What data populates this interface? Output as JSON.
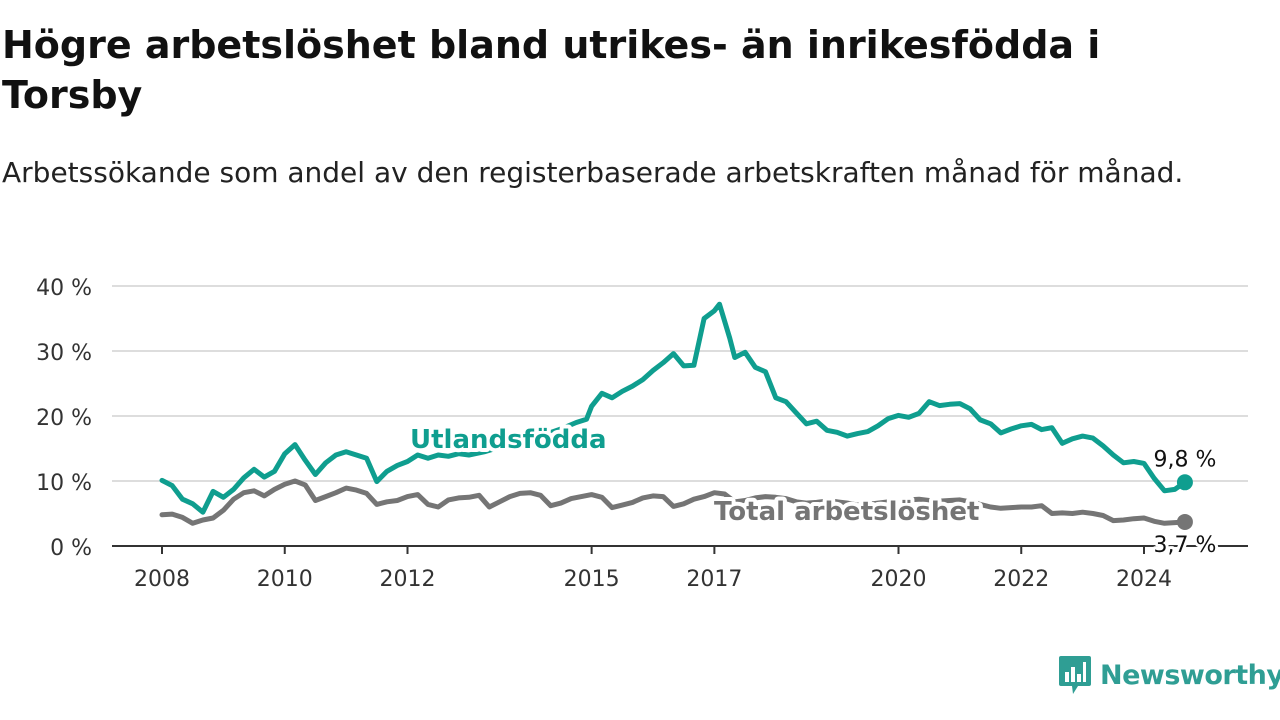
{
  "title": "Högre arbetslöshet bland utrikes- än inrikesfödda i Torsby",
  "subtitle": "Arbetssökande som andel av den registerbaserade arbetskraften månad för månad.",
  "brand": {
    "name": "Newsworthy",
    "icon": "newsworthy-logo-icon",
    "color": "#2f9e94"
  },
  "colors": {
    "utlandsfodda": "#0f9e8f",
    "total": "#757575",
    "grid": "#dddddd",
    "axis": "#333333"
  },
  "chart_data": {
    "type": "line",
    "x_axis": {
      "range": [
        "2008-01",
        "2025-01"
      ],
      "tick_labels": [
        {
          "x": "2008-01",
          "label": "2008"
        },
        {
          "x": "2010-01",
          "label": "2010"
        },
        {
          "x": "2012-01",
          "label": "2012"
        },
        {
          "x": "2015-01",
          "label": "2015"
        },
        {
          "x": "2017-01",
          "label": "2017"
        },
        {
          "x": "2020-01",
          "label": "2020"
        },
        {
          "x": "2022-01",
          "label": "2022"
        },
        {
          "x": "2024-01",
          "label": "2024"
        }
      ]
    },
    "y_axis": {
      "range": [
        0,
        40
      ],
      "ticks": [
        {
          "value": 0,
          "label": "0 %"
        },
        {
          "value": 10,
          "label": "10 %"
        },
        {
          "value": 20,
          "label": "20 %"
        },
        {
          "value": 30,
          "label": "30 %"
        },
        {
          "value": 40,
          "label": "40 %"
        }
      ]
    },
    "grid": true,
    "series": [
      {
        "name": "Utlandsfödda",
        "color": "#0f9e8f",
        "end_label": "9,8 %",
        "end_value": 9.8,
        "points": [
          [
            "2008-01",
            10.1
          ],
          [
            "2008-03",
            9.3
          ],
          [
            "2008-05",
            7.2
          ],
          [
            "2008-07",
            6.5
          ],
          [
            "2008-09",
            5.2
          ],
          [
            "2008-11",
            8.4
          ],
          [
            "2009-01",
            7.5
          ],
          [
            "2009-03",
            8.7
          ],
          [
            "2009-05",
            10.5
          ],
          [
            "2009-07",
            11.8
          ],
          [
            "2009-09",
            10.6
          ],
          [
            "2009-11",
            11.5
          ],
          [
            "2010-01",
            14.2
          ],
          [
            "2010-03",
            15.6
          ],
          [
            "2010-05",
            13.2
          ],
          [
            "2010-07",
            11.0
          ],
          [
            "2010-09",
            12.8
          ],
          [
            "2010-11",
            14.0
          ],
          [
            "2011-01",
            14.5
          ],
          [
            "2011-03",
            14.0
          ],
          [
            "2011-05",
            13.5
          ],
          [
            "2011-07",
            9.9
          ],
          [
            "2011-09",
            11.5
          ],
          [
            "2011-11",
            12.4
          ],
          [
            "2012-01",
            13.0
          ],
          [
            "2012-03",
            14.0
          ],
          [
            "2012-05",
            13.5
          ],
          [
            "2012-07",
            14.0
          ],
          [
            "2012-09",
            13.8
          ],
          [
            "2012-11",
            14.2
          ],
          [
            "2013-01",
            14.0
          ],
          [
            "2013-04",
            14.5
          ],
          [
            "2013-07",
            15.2
          ],
          [
            "2013-10",
            16.0
          ],
          [
            "2014-01",
            16.5
          ],
          [
            "2014-04",
            17.2
          ],
          [
            "2014-07",
            18.0
          ],
          [
            "2014-10",
            19.0
          ],
          [
            "2014-12",
            19.5
          ],
          [
            "2015-01",
            21.5
          ],
          [
            "2015-03",
            23.5
          ],
          [
            "2015-05",
            22.8
          ],
          [
            "2015-07",
            23.8
          ],
          [
            "2015-09",
            24.6
          ],
          [
            "2015-11",
            25.6
          ],
          [
            "2016-01",
            27.0
          ],
          [
            "2016-03",
            28.2
          ],
          [
            "2016-05",
            29.6
          ],
          [
            "2016-07",
            27.7
          ],
          [
            "2016-09",
            27.8
          ],
          [
            "2016-11",
            35.0
          ],
          [
            "2017-01",
            36.2
          ],
          [
            "2017-02",
            37.2
          ],
          [
            "2017-04",
            32.0
          ],
          [
            "2017-05",
            29.0
          ],
          [
            "2017-07",
            29.8
          ],
          [
            "2017-09",
            27.5
          ],
          [
            "2017-11",
            26.8
          ],
          [
            "2018-01",
            22.8
          ],
          [
            "2018-03",
            22.2
          ],
          [
            "2018-05",
            20.5
          ],
          [
            "2018-07",
            18.8
          ],
          [
            "2018-09",
            19.2
          ],
          [
            "2018-11",
            17.8
          ],
          [
            "2019-01",
            17.5
          ],
          [
            "2019-03",
            16.9
          ],
          [
            "2019-05",
            17.3
          ],
          [
            "2019-07",
            17.6
          ],
          [
            "2019-09",
            18.5
          ],
          [
            "2019-11",
            19.6
          ],
          [
            "2020-01",
            20.1
          ],
          [
            "2020-03",
            19.8
          ],
          [
            "2020-05",
            20.4
          ],
          [
            "2020-07",
            22.2
          ],
          [
            "2020-09",
            21.6
          ],
          [
            "2020-11",
            21.8
          ],
          [
            "2021-01",
            21.9
          ],
          [
            "2021-03",
            21.1
          ],
          [
            "2021-05",
            19.4
          ],
          [
            "2021-07",
            18.8
          ],
          [
            "2021-09",
            17.4
          ],
          [
            "2021-11",
            18.0
          ],
          [
            "2022-01",
            18.5
          ],
          [
            "2022-03",
            18.7
          ],
          [
            "2022-05",
            17.9
          ],
          [
            "2022-07",
            18.2
          ],
          [
            "2022-09",
            15.8
          ],
          [
            "2022-11",
            16.5
          ],
          [
            "2023-01",
            16.9
          ],
          [
            "2023-03",
            16.6
          ],
          [
            "2023-05",
            15.4
          ],
          [
            "2023-07",
            14.0
          ],
          [
            "2023-09",
            12.8
          ],
          [
            "2023-11",
            13.0
          ],
          [
            "2024-01",
            12.7
          ],
          [
            "2024-03",
            10.4
          ],
          [
            "2024-05",
            8.5
          ],
          [
            "2024-07",
            8.7
          ],
          [
            "2024-09",
            9.8
          ]
        ]
      },
      {
        "name": "Total arbetslöshet",
        "color": "#757575",
        "end_label": "3,7 %",
        "end_value": 3.7,
        "points": [
          [
            "2008-01",
            4.8
          ],
          [
            "2008-03",
            4.9
          ],
          [
            "2008-05",
            4.4
          ],
          [
            "2008-07",
            3.5
          ],
          [
            "2008-09",
            4.0
          ],
          [
            "2008-11",
            4.3
          ],
          [
            "2009-01",
            5.5
          ],
          [
            "2009-03",
            7.2
          ],
          [
            "2009-05",
            8.2
          ],
          [
            "2009-07",
            8.5
          ],
          [
            "2009-09",
            7.7
          ],
          [
            "2009-11",
            8.7
          ],
          [
            "2010-01",
            9.5
          ],
          [
            "2010-03",
            10.0
          ],
          [
            "2010-05",
            9.4
          ],
          [
            "2010-07",
            7.0
          ],
          [
            "2010-09",
            7.6
          ],
          [
            "2010-11",
            8.2
          ],
          [
            "2011-01",
            8.9
          ],
          [
            "2011-03",
            8.6
          ],
          [
            "2011-05",
            8.1
          ],
          [
            "2011-07",
            6.4
          ],
          [
            "2011-09",
            6.8
          ],
          [
            "2011-11",
            7.0
          ],
          [
            "2012-01",
            7.6
          ],
          [
            "2012-03",
            7.9
          ],
          [
            "2012-05",
            6.4
          ],
          [
            "2012-07",
            6.0
          ],
          [
            "2012-09",
            7.1
          ],
          [
            "2012-11",
            7.4
          ],
          [
            "2013-01",
            7.5
          ],
          [
            "2013-03",
            7.8
          ],
          [
            "2013-05",
            6.0
          ],
          [
            "2013-07",
            6.8
          ],
          [
            "2013-09",
            7.6
          ],
          [
            "2013-11",
            8.1
          ],
          [
            "2014-01",
            8.2
          ],
          [
            "2014-03",
            7.8
          ],
          [
            "2014-05",
            6.2
          ],
          [
            "2014-07",
            6.6
          ],
          [
            "2014-09",
            7.3
          ],
          [
            "2014-11",
            7.6
          ],
          [
            "2015-01",
            7.9
          ],
          [
            "2015-03",
            7.5
          ],
          [
            "2015-05",
            5.9
          ],
          [
            "2015-07",
            6.3
          ],
          [
            "2015-09",
            6.7
          ],
          [
            "2015-11",
            7.4
          ],
          [
            "2016-01",
            7.7
          ],
          [
            "2016-03",
            7.6
          ],
          [
            "2016-05",
            6.1
          ],
          [
            "2016-07",
            6.5
          ],
          [
            "2016-09",
            7.2
          ],
          [
            "2016-11",
            7.6
          ],
          [
            "2017-01",
            8.2
          ],
          [
            "2017-03",
            8.0
          ],
          [
            "2017-05",
            6.8
          ],
          [
            "2017-07",
            7.0
          ],
          [
            "2017-09",
            7.4
          ],
          [
            "2017-11",
            7.6
          ],
          [
            "2018-01",
            7.5
          ],
          [
            "2018-03",
            7.3
          ],
          [
            "2018-05",
            6.8
          ],
          [
            "2018-07",
            6.6
          ],
          [
            "2018-09",
            6.7
          ],
          [
            "2018-11",
            6.9
          ],
          [
            "2019-01",
            6.8
          ],
          [
            "2019-03",
            6.6
          ],
          [
            "2019-05",
            6.3
          ],
          [
            "2019-07",
            6.4
          ],
          [
            "2019-09",
            6.6
          ],
          [
            "2019-11",
            6.8
          ],
          [
            "2020-01",
            6.9
          ],
          [
            "2020-03",
            7.1
          ],
          [
            "2020-05",
            7.2
          ],
          [
            "2020-07",
            7.0
          ],
          [
            "2020-09",
            6.9
          ],
          [
            "2020-11",
            7.0
          ],
          [
            "2021-01",
            7.1
          ],
          [
            "2021-03",
            6.8
          ],
          [
            "2021-05",
            6.4
          ],
          [
            "2021-07",
            6.0
          ],
          [
            "2021-09",
            5.8
          ],
          [
            "2021-11",
            5.9
          ],
          [
            "2022-01",
            6.0
          ],
          [
            "2022-03",
            6.0
          ],
          [
            "2022-05",
            6.2
          ],
          [
            "2022-07",
            5.0
          ],
          [
            "2022-09",
            5.1
          ],
          [
            "2022-11",
            5.0
          ],
          [
            "2023-01",
            5.2
          ],
          [
            "2023-03",
            5.0
          ],
          [
            "2023-05",
            4.7
          ],
          [
            "2023-07",
            3.9
          ],
          [
            "2023-09",
            4.0
          ],
          [
            "2023-11",
            4.2
          ],
          [
            "2024-01",
            4.3
          ],
          [
            "2024-03",
            3.8
          ],
          [
            "2024-05",
            3.5
          ],
          [
            "2024-07",
            3.6
          ],
          [
            "2024-09",
            3.7
          ]
        ]
      }
    ]
  }
}
